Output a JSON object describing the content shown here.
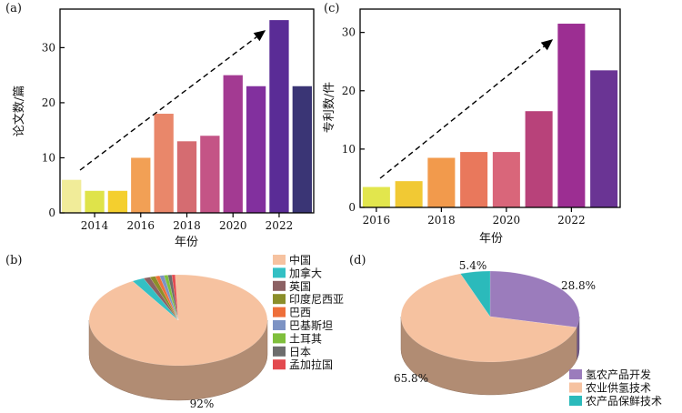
{
  "chart_data": [
    {
      "panel": "(a)",
      "type": "bar",
      "x": [
        2013,
        2014,
        2015,
        2016,
        2017,
        2018,
        2019,
        2020,
        2021,
        2022,
        2023
      ],
      "values": [
        6,
        4,
        4,
        10,
        18,
        13,
        14,
        25,
        23,
        35,
        23
      ],
      "colors": [
        "#f1ec99",
        "#dfe34a",
        "#f4cf2e",
        "#f2a055",
        "#e9876a",
        "#d56c71",
        "#c45486",
        "#a33a92",
        "#82309e",
        "#5a2c96",
        "#3a3575"
      ],
      "xticks": [
        2014,
        2016,
        2018,
        2020,
        2022
      ],
      "yticks": [
        0,
        10,
        20,
        30
      ],
      "ylim": [
        0,
        37
      ],
      "xlabel": "年份",
      "ylabel": "论文数/篇"
    },
    {
      "panel": "(c)",
      "type": "bar",
      "x": [
        2016,
        2017,
        2018,
        2019,
        2020,
        2021,
        2022,
        2023
      ],
      "values": [
        3.5,
        4.5,
        8.5,
        9.5,
        9.5,
        16.5,
        31.5,
        23.5
      ],
      "colors": [
        "#e2e64d",
        "#f1c934",
        "#f29a4c",
        "#e9785c",
        "#d9667a",
        "#b8427a",
        "#9c2e92",
        "#6a3494"
      ],
      "xticks": [
        2016,
        2018,
        2020,
        2022
      ],
      "yticks": [
        0,
        10,
        20,
        30
      ],
      "ylim": [
        0,
        34
      ],
      "xlabel": "年份",
      "ylabel": "专利数/件"
    },
    {
      "panel": "(b)",
      "type": "pie",
      "labels": [
        "中国",
        "加拿大",
        "英国",
        "印度尼西亚",
        "巴西",
        "巴基斯坦",
        "土耳其",
        "日本",
        "孟加拉国"
      ],
      "values": [
        92,
        2.2,
        1.2,
        1,
        0.8,
        0.8,
        0.7,
        0.7,
        0.6
      ],
      "colors": [
        "#f6c2a0",
        "#33c0c4",
        "#8c6163",
        "#8b8e2a",
        "#ee6f3a",
        "#7d93c4",
        "#7fbf3c",
        "#6d6d6d",
        "#e34a4f"
      ],
      "value_labels": [
        "92%"
      ],
      "legend": "right"
    },
    {
      "panel": "(d)",
      "type": "pie",
      "labels": [
        "氢农产品开发",
        "农业供氢技术",
        "农产品保鲜技术"
      ],
      "values": [
        28.8,
        65.8,
        5.4
      ],
      "colors": [
        "#9b7cbc",
        "#f6c2a0",
        "#2bbabb"
      ],
      "value_labels": [
        "28.8%",
        "65.8%",
        "5.4%"
      ],
      "legend": "bottom-right"
    }
  ]
}
